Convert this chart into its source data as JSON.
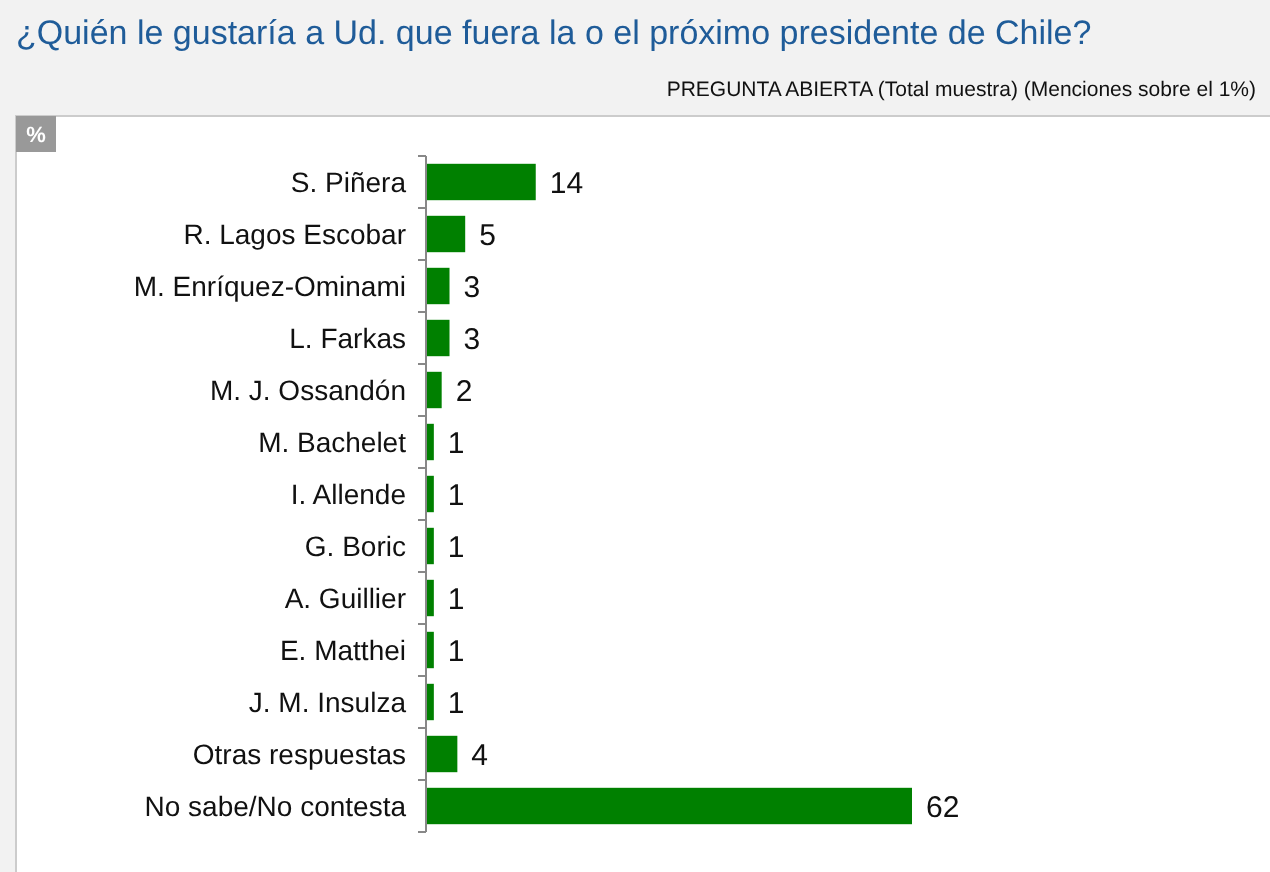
{
  "chart_data": {
    "type": "bar",
    "orientation": "horizontal",
    "title": "¿Quién le gustaría a Ud. que fuera la o el próximo presidente de Chile?",
    "subtitle": "PREGUNTA ABIERTA (Total muestra) (Menciones sobre el 1%)",
    "annotations": [
      "%"
    ],
    "categories": [
      "S. Piñera",
      "R. Lagos Escobar",
      "M. Enríquez-Ominami",
      "L. Farkas",
      "M. J. Ossandón",
      "M. Bachelet",
      "I. Allende",
      "G. Boric",
      "A. Guillier",
      "E. Matthei",
      "J. M. Insulza",
      "Otras respuestas",
      "No sabe/No contesta"
    ],
    "values": [
      14,
      5,
      3,
      3,
      2,
      1,
      1,
      1,
      1,
      1,
      1,
      4,
      62
    ],
    "color": "#008000",
    "data_labels": true
  }
}
